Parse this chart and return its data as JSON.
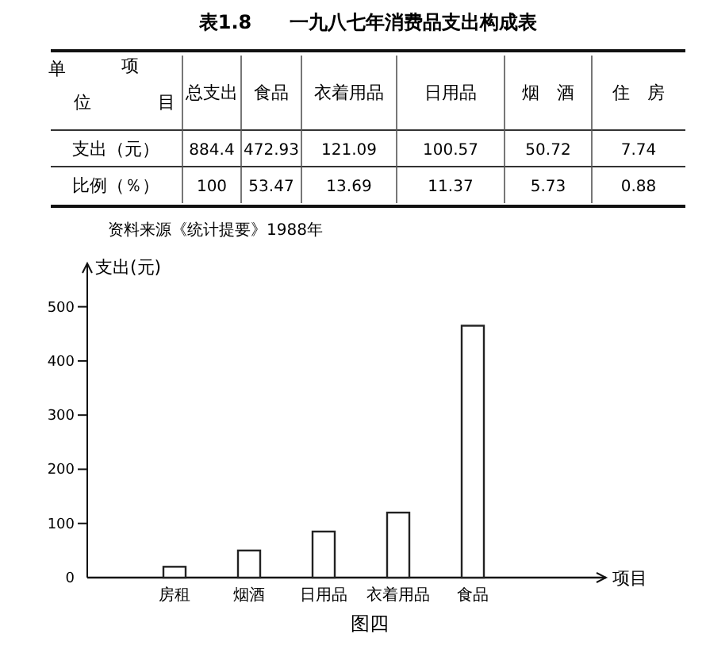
{
  "chart_data": [
    {
      "type": "other",
      "title": "表1.8　　一九八七年消费品支出构成表",
      "categories": [
        "总支出",
        "食品",
        "衣着用品",
        "日用品",
        "烟　酒",
        "住　房"
      ],
      "annotations": [
        "单",
        "位",
        "项",
        "目",
        "支出（元）",
        "比例（％）",
        "884.4",
        "472.93",
        "121.09",
        "100.57",
        "50.72",
        "7.74",
        "100",
        "53.47",
        "13.69",
        "11.37",
        "5.73",
        "0.88"
      ]
    },
    {
      "type": "bar",
      "xlabel": "项目",
      "ylabel": "支出(元)",
      "annotations": [
        "资料来源《统计提要》1988年",
        "图四"
      ],
      "categories": [
        "房租",
        "烟酒",
        "日用品",
        "衣着用品",
        "食品"
      ],
      "values": [
        20,
        50,
        85,
        120,
        465
      ],
      "color": "#222222",
      "ylim": [
        0,
        580
      ],
      "yticks": [
        0,
        100,
        200,
        300,
        400,
        500
      ],
      "grid": false
    }
  ]
}
